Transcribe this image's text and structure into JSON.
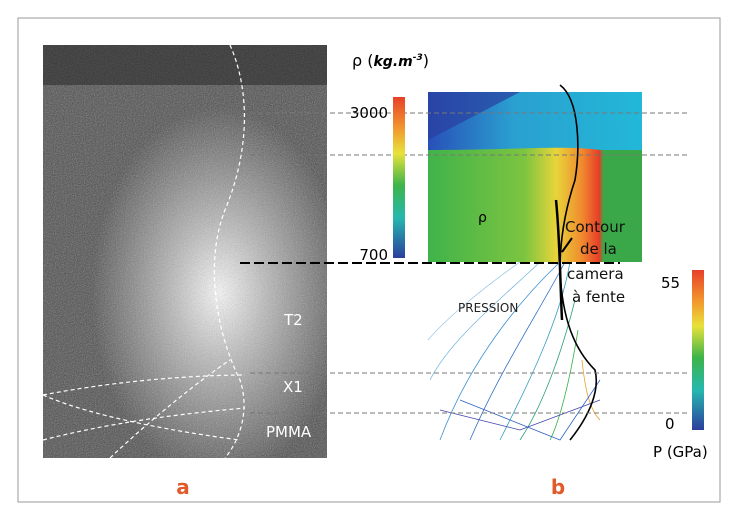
{
  "figure": {
    "panel_a": {
      "label": "a",
      "regions": [
        "T2",
        "X1",
        "PMMA"
      ]
    },
    "panel_b": {
      "label": "b",
      "density_label": "ρ",
      "pressure_field_label": "PRESSION",
      "contour_note": [
        "Contour",
        "de la",
        "camera",
        "à fente"
      ]
    },
    "density_scale": {
      "symbol": "ρ (",
      "unit": "kg.m",
      "exponent": "-3",
      "close": ")",
      "max": "3000",
      "min": "700"
    },
    "pressure_scale": {
      "max": "55",
      "min": "0",
      "title": "P (GPa)"
    }
  }
}
